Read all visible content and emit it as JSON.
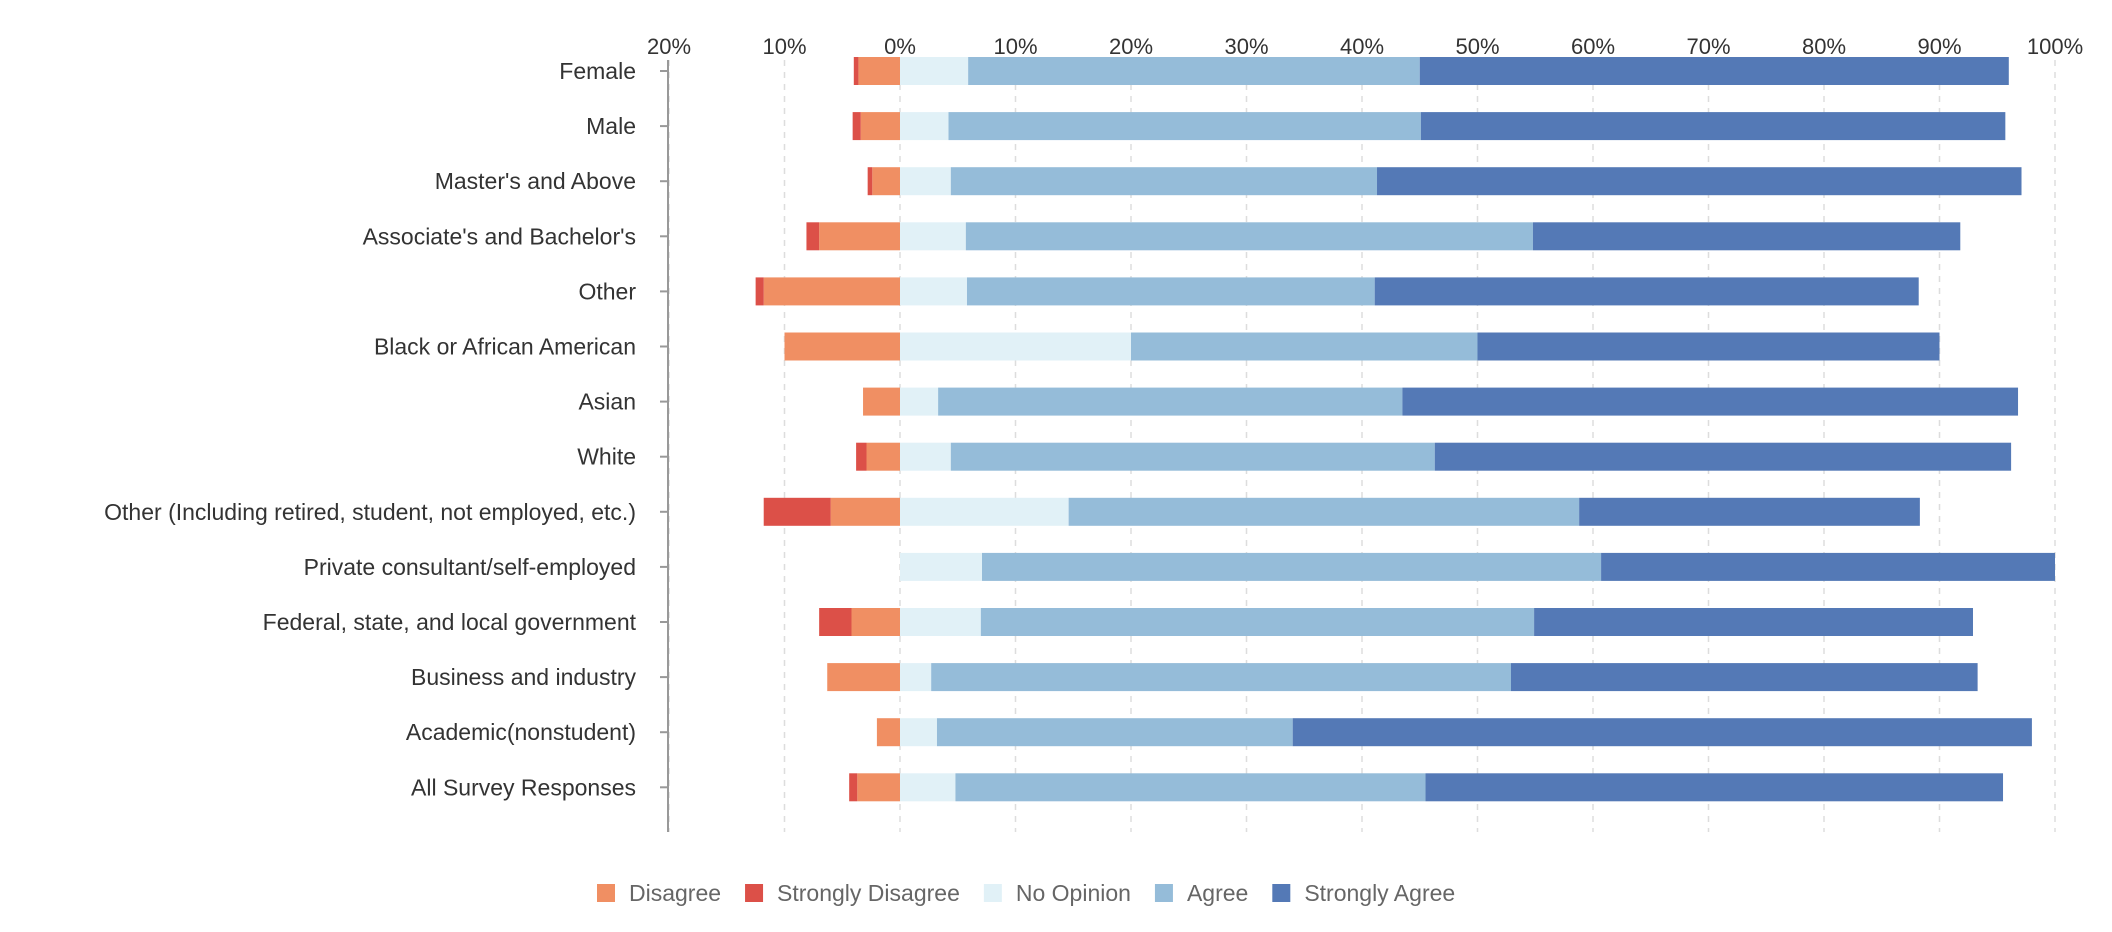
{
  "chart_data": {
    "type": "bar",
    "orientation": "horizontal",
    "stacked": "diverging",
    "xlim": [
      -20,
      100
    ],
    "ticks": [
      -20,
      -10,
      0,
      10,
      20,
      30,
      40,
      50,
      60,
      70,
      80,
      90,
      100
    ],
    "tick_labels": [
      "20%",
      "10%",
      "0%",
      "10%",
      "20%",
      "30%",
      "40%",
      "50%",
      "60%",
      "70%",
      "80%",
      "90%",
      "100%"
    ],
    "grid": true,
    "legend_position": "bottom-center",
    "categories": [
      "Female",
      "Male",
      "Master's and Above",
      "Associate's and Bachelor's",
      "Other",
      "Black or African American",
      "Asian",
      "White",
      "Other (Including retired, student, not employed, etc.)",
      "Private consultant/self-employed",
      "Federal, state, and local government",
      "Business and industry",
      "Academic(nonstudent)",
      "All Survey Responses"
    ],
    "series": [
      {
        "name": "Disagree",
        "color": "#f08f63",
        "direction": "negative",
        "values": [
          3.6,
          3.4,
          2.4,
          7.0,
          11.8,
          10.0,
          3.2,
          2.9,
          6.0,
          0.0,
          4.2,
          6.3,
          2.0,
          3.7
        ]
      },
      {
        "name": "Strongly Disagree",
        "color": "#dc5048",
        "direction": "negative",
        "values": [
          0.4,
          0.7,
          0.4,
          1.1,
          0.7,
          0.0,
          0.0,
          0.9,
          5.8,
          0.0,
          2.8,
          0.0,
          0.0,
          0.7
        ]
      },
      {
        "name": "No Opinion",
        "color": "#e1f1f7",
        "direction": "positive",
        "values": [
          5.9,
          4.2,
          4.4,
          5.7,
          5.8,
          20.0,
          3.3,
          4.4,
          14.6,
          7.1,
          7.0,
          2.7,
          3.2,
          4.8
        ]
      },
      {
        "name": "Agree",
        "color": "#95bcd9",
        "direction": "positive",
        "values": [
          39.1,
          40.9,
          36.9,
          49.1,
          35.3,
          30.0,
          40.2,
          41.9,
          44.2,
          53.6,
          47.9,
          50.2,
          30.8,
          40.7
        ]
      },
      {
        "name": "Strongly Agree",
        "color": "#5479b6",
        "direction": "positive",
        "values": [
          51.0,
          50.6,
          55.8,
          37.0,
          47.1,
          40.0,
          53.3,
          49.9,
          29.5,
          39.3,
          38.0,
          40.4,
          64.0,
          50.0
        ]
      }
    ]
  }
}
